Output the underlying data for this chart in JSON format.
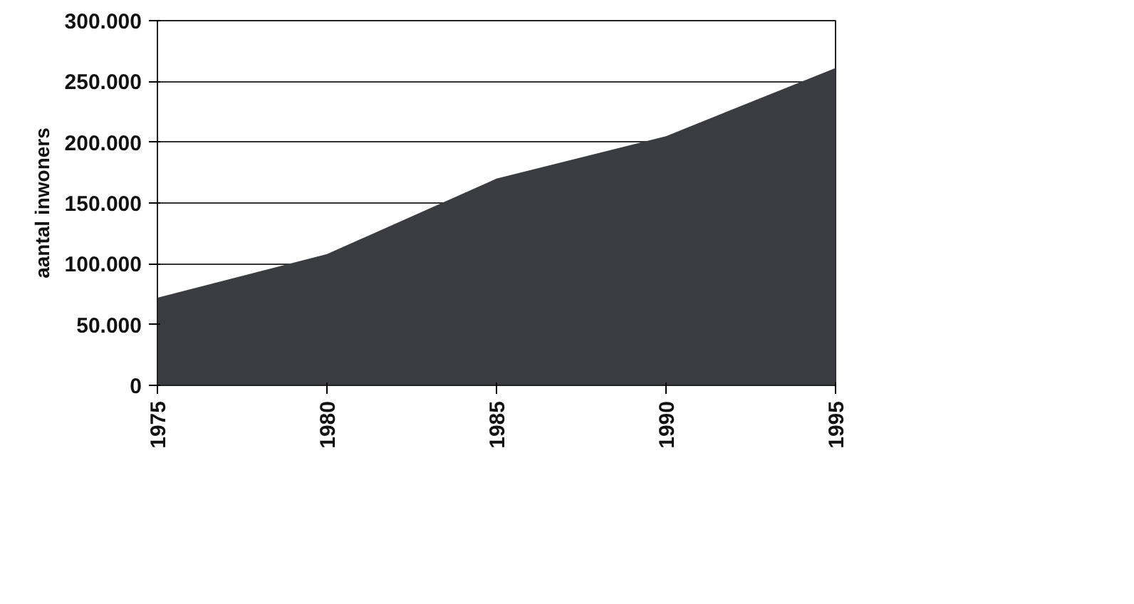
{
  "chart_data": {
    "type": "area",
    "ylabel": "aantal inwoners",
    "categories": [
      "1975",
      "1980",
      "1985",
      "1990",
      "1995"
    ],
    "series": [
      {
        "color": "#3b3c42",
        "values": [
          72000,
          108000,
          170000,
          205000,
          261000
        ]
      }
    ],
    "ylim": [
      0,
      300000
    ],
    "yticks": [
      {
        "value": 0,
        "label": "0"
      },
      {
        "value": 50000,
        "label": "50.000"
      },
      {
        "value": 100000,
        "label": "100.000"
      },
      {
        "value": 150000,
        "label": "150.000"
      },
      {
        "value": 200000,
        "label": "200.000"
      },
      {
        "value": 250000,
        "label": "250.000"
      },
      {
        "value": 300000,
        "label": "300.000"
      }
    ],
    "grid": "y"
  }
}
